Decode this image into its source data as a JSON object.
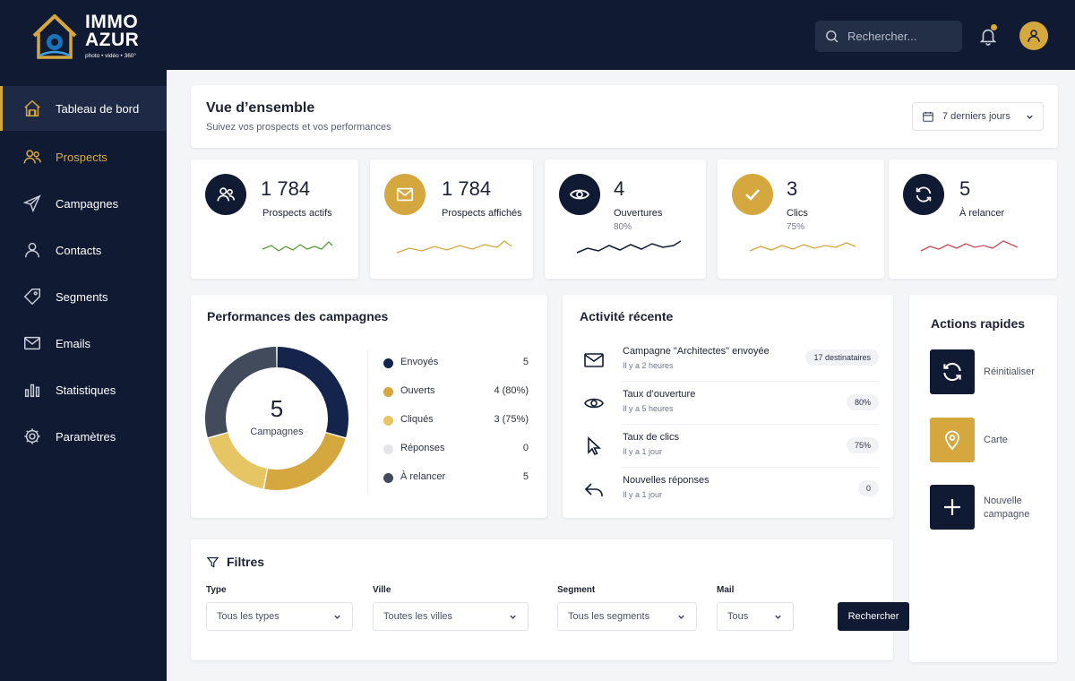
{
  "brand": {
    "name_line1": "IMMO",
    "name_line2": "AZUR",
    "tagline": "photo • vidéo • 360°",
    "colors": {
      "navy": "#101a32",
      "gold": "#d4a73f",
      "green": "#5a9a3a",
      "red": "#c94d5a"
    }
  },
  "header": {
    "search_placeholder": "Rechercher..."
  },
  "sidebar": {
    "items": [
      {
        "label": "Tableau de bord",
        "icon": "house-icon",
        "state": "active"
      },
      {
        "label": "Prospects",
        "icon": "users-icon",
        "state": "highlight"
      },
      {
        "label": "Campagnes",
        "icon": "send-icon",
        "state": "normal"
      },
      {
        "label": "Contacts",
        "icon": "user-icon",
        "state": "normal"
      },
      {
        "label": "Segments",
        "icon": "tag-icon",
        "state": "normal"
      },
      {
        "label": "Emails",
        "icon": "mail-icon",
        "state": "normal"
      },
      {
        "label": "Statistiques",
        "icon": "bar-chart-icon",
        "state": "normal"
      },
      {
        "label": "Paramètres",
        "icon": "gear-icon",
        "state": "normal"
      }
    ]
  },
  "overview": {
    "title": "Vue d’ensemble",
    "subtitle": "Suivez vos prospects et vos performances",
    "period": "7 derniers jours"
  },
  "kpis": [
    {
      "value": "1 784",
      "label": "Prospects actifs",
      "sub": "",
      "icon": "users-icon",
      "spark_color": "#5a9a3a"
    },
    {
      "value": "1 784",
      "label": "Prospects affichés",
      "sub": "",
      "icon": "mail-icon",
      "spark_color": "#d4a73f"
    },
    {
      "value": "4",
      "label": "Ouvertures",
      "sub": "80%",
      "icon": "eye-icon",
      "spark_color": "#101a32"
    },
    {
      "value": "3",
      "label": "Clics",
      "sub": "75%",
      "icon": "check-icon",
      "spark_color": "#d4a73f"
    },
    {
      "value": "5",
      "label": "À relancer",
      "sub": "",
      "icon": "refresh-icon",
      "spark_color": "#c94d5a"
    }
  ],
  "performance": {
    "title": "Performances des campagnes",
    "center_value": "5",
    "center_label": "Campagnes",
    "legend": [
      {
        "label": "Envoyés",
        "value": "5",
        "color": "#14244a"
      },
      {
        "label": "Ouverts",
        "value": "4 (80%)",
        "color": "#d4a73f"
      },
      {
        "label": "Cliqués",
        "value": "3 (75%)",
        "color": "#e6c664"
      },
      {
        "label": "Réponses",
        "value": "0",
        "color": "#e3e5e9"
      },
      {
        "label": "À relancer",
        "value": "5",
        "color": "#424b5b"
      }
    ]
  },
  "chart_data": {
    "type": "pie",
    "title": "Performances des campagnes",
    "labels": [
      "Envoyés",
      "Ouverts",
      "Cliqués",
      "Réponses",
      "À relancer"
    ],
    "values": [
      5,
      4,
      3,
      0,
      5
    ]
  },
  "activity": {
    "title": "Activité récente",
    "items": [
      {
        "title": "Campagne \"Architectes\" envoyée",
        "time": "Il y a 2 heures",
        "badge": "17 destinataires",
        "icon": "mail-icon"
      },
      {
        "title": "Taux d’ouverture",
        "time": "Il y a 5 heures",
        "badge": "80%",
        "icon": "eye-icon"
      },
      {
        "title": "Taux de clics",
        "time": "Il y a 1 jour",
        "badge": "75%",
        "icon": "cursor-icon"
      },
      {
        "title": "Nouvelles réponses",
        "time": "Il y a 1 jour",
        "badge": "0",
        "icon": "reply-icon"
      }
    ]
  },
  "quick_actions": {
    "title": "Actions rapides",
    "items": [
      {
        "label": "Réinitialiser",
        "icon": "refresh-icon"
      },
      {
        "label": "Carte",
        "icon": "map-pin-icon"
      },
      {
        "label_line1": "Nouvelle",
        "label_line2": "campagne",
        "icon": "plus-icon"
      }
    ]
  },
  "filters": {
    "title": "Filtres",
    "fields": [
      {
        "label": "Type",
        "value": "Tous les types"
      },
      {
        "label": "Ville",
        "value": "Toutes les villes"
      },
      {
        "label": "Segment",
        "value": "Tous les segments"
      },
      {
        "label": "Mail",
        "value": "Tous"
      }
    ],
    "button": "Rechercher"
  }
}
